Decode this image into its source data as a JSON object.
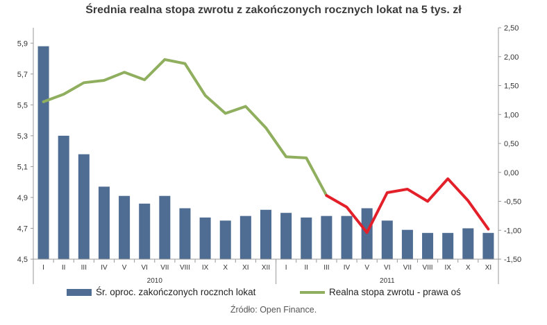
{
  "chart_data": {
    "type": "bar",
    "title": "Średnia realna stopa zwrotu z zakończonych rocznych lokat na 5 tys. zł",
    "source": "Źródło: Open Finance.",
    "categories": [
      "I",
      "II",
      "III",
      "IV",
      "V",
      "VI",
      "VII",
      "VIII",
      "IX",
      "X",
      "XI",
      "XII",
      "I",
      "II",
      "III",
      "IV",
      "V",
      "VI",
      "VII",
      "VIII",
      "IX",
      "X",
      "XI"
    ],
    "year_groups": [
      {
        "label": "2010",
        "count": 12
      },
      {
        "label": "2011",
        "count": 11
      }
    ],
    "y_left": {
      "lim": [
        4.5,
        6.0
      ],
      "ticks": [
        "4,5",
        "4,7",
        "4,9",
        "5,1",
        "5,3",
        "5,5",
        "5,7",
        "5,9"
      ],
      "tick_values": [
        4.5,
        4.7,
        4.9,
        5.1,
        5.3,
        5.5,
        5.7,
        5.9
      ]
    },
    "y_right": {
      "lim": [
        -1.5,
        2.5
      ],
      "ticks": [
        "-1,50",
        "-1,00",
        "-0,50",
        "0,00",
        "0,50",
        "1,00",
        "1,50",
        "2,00",
        "2,50"
      ],
      "tick_values": [
        -1.5,
        -1.0,
        -0.5,
        0.0,
        0.5,
        1.0,
        1.5,
        2.0,
        2.5
      ]
    },
    "series": [
      {
        "name": "Śr. oproc. zakończonych rocznch lokat",
        "kind": "bar",
        "axis": "left",
        "color": "#4f6d93",
        "values": [
          5.88,
          5.3,
          5.18,
          4.97,
          4.91,
          4.86,
          4.91,
          4.83,
          4.77,
          4.75,
          4.78,
          4.82,
          4.8,
          4.77,
          4.78,
          4.78,
          4.83,
          4.75,
          4.69,
          4.67,
          4.67,
          4.7,
          4.67
        ]
      },
      {
        "name": "Realna stopa zwrotu - prawa oś",
        "kind": "line",
        "axis": "right",
        "color": "#8faf5f",
        "highlight_color": "#e3202a",
        "highlight_from_index": 14,
        "values": [
          1.22,
          1.35,
          1.55,
          1.59,
          1.73,
          1.6,
          1.95,
          1.88,
          1.33,
          1.02,
          1.14,
          0.77,
          0.27,
          0.25,
          -0.4,
          -0.6,
          -1.04,
          -0.35,
          -0.29,
          -0.5,
          -0.11,
          -0.49,
          -0.98
        ]
      }
    ],
    "grid": false,
    "legend_position": "bottom"
  }
}
